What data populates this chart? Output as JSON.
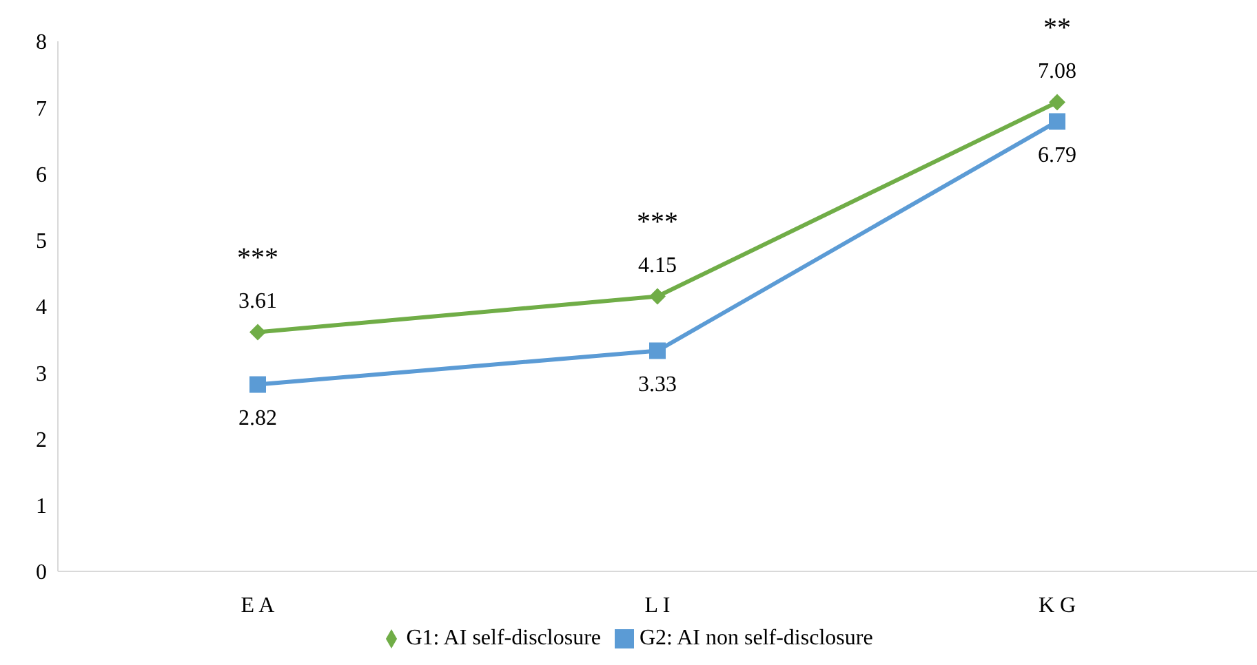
{
  "chart_data": {
    "type": "line",
    "categories": [
      "E A",
      "L I",
      "K G"
    ],
    "series": [
      {
        "name": "G1: AI self-disclosure",
        "color": "#70ad47",
        "marker": "diamond",
        "values": [
          3.61,
          4.15,
          7.08
        ]
      },
      {
        "name": "G2: AI non self-disclosure",
        "color": "#5b9bd5",
        "marker": "square",
        "values": [
          2.82,
          3.33,
          6.79
        ]
      }
    ],
    "ylim": [
      0,
      8
    ],
    "yticks": [
      0,
      1,
      2,
      3,
      4,
      5,
      6,
      7,
      8
    ],
    "grid": false,
    "legend": "bottom",
    "data_labels": true,
    "annotations": [
      "***",
      "***",
      "**"
    ]
  }
}
